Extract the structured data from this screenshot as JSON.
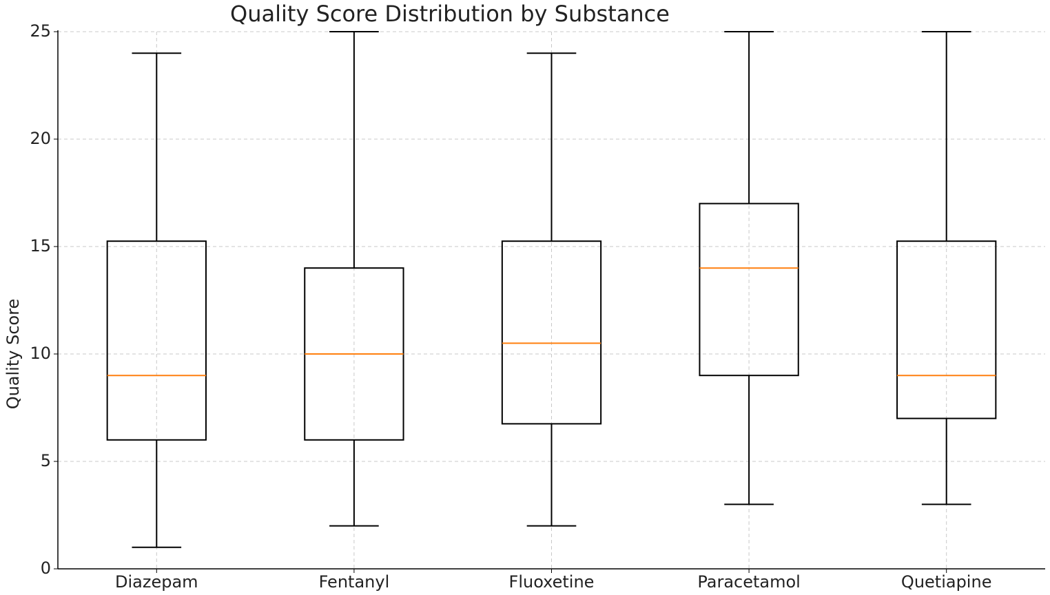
{
  "chart_data": {
    "type": "box",
    "title": "Quality Score Distribution by Substance",
    "ylabel": "Quality Score",
    "categories": [
      "Diazepam",
      "Fentanyl",
      "Fluoxetine",
      "Paracetamol",
      "Quetiapine"
    ],
    "min": [
      1,
      2,
      2,
      3,
      3
    ],
    "q1": [
      6,
      6,
      6.75,
      9,
      7
    ],
    "median": [
      9,
      10,
      10.5,
      14,
      9
    ],
    "q3": [
      15.25,
      14,
      15.25,
      17,
      15.25
    ],
    "max": [
      24,
      25,
      24,
      25,
      25
    ],
    "box_color": "#000000",
    "median_color": "#ff7f0e",
    "ylim": [
      0,
      25
    ],
    "yticks": [
      0,
      5,
      10,
      15,
      20,
      25
    ],
    "grid": true
  }
}
